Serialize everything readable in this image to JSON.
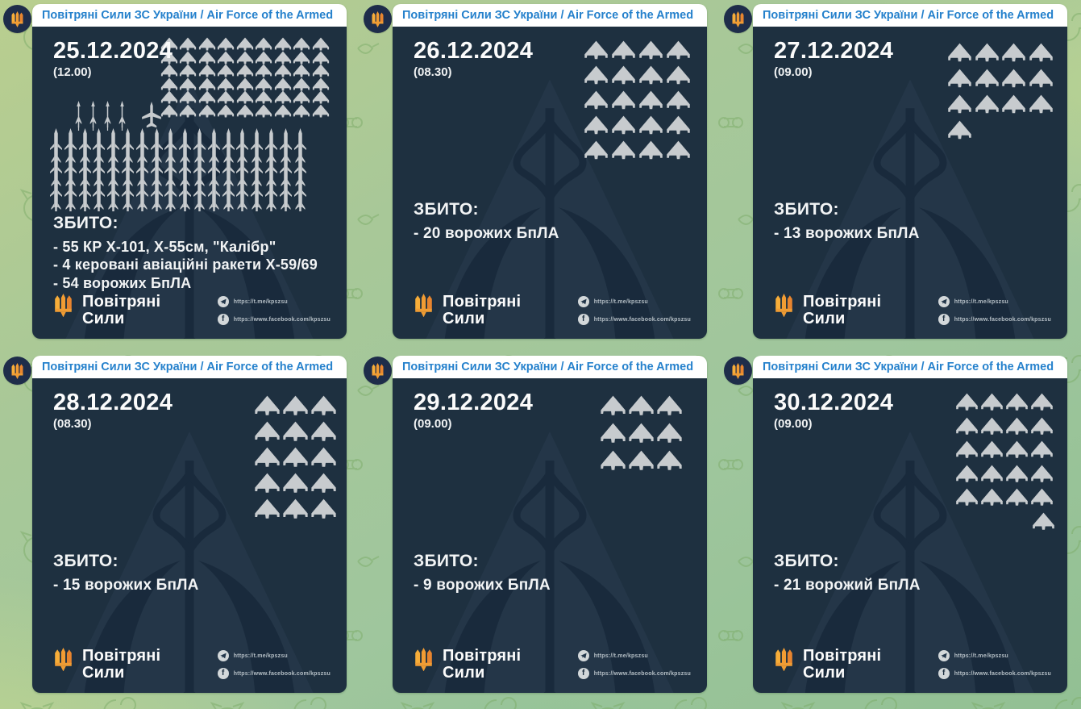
{
  "channel": {
    "title": "Повітряні Сили ЗС України / Air Force of the Armed Forces of U..."
  },
  "labels": {
    "shot_down": "ЗБИТО:"
  },
  "footer": {
    "logo_line1": "Повітряні",
    "logo_line2": "Сили",
    "telegram_url": "https://t.me/kpszsu",
    "facebook_url": "https://www.facebook.com/kpszsu"
  },
  "icon_types": {
    "drone": "shahed-drone-icon",
    "cruise": "cruise-missile-icon",
    "rocket": "guided-rocket-icon",
    "avatar": "trident-icon"
  },
  "colors": {
    "card_bg": "#1e3040",
    "header_blue": "#2581cc",
    "icon_gray": "#c7cbce",
    "trident_orange": "#f09a33",
    "chat_bg_green": "#a6c79a"
  },
  "posts": [
    {
      "date": "25.12.2024",
      "time": "(12.00)",
      "items": [
        "- 55 КР Х-101, Х-55см, \"Калібр\"",
        "- 4 керовані авіаційні ракети Х-59/69",
        "- 54 ворожих БпЛА"
      ],
      "icons": {
        "drones": 54,
        "drone_cols": 9,
        "rockets": 4,
        "cruise": 55,
        "cruise_cols": 18,
        "last_row_align": "left"
      }
    },
    {
      "date": "26.12.2024",
      "time": "(08.30)",
      "items": [
        "- 20 ворожих БпЛА"
      ],
      "icons": {
        "drones": 20,
        "drone_cols": 4,
        "last_row_align": "left"
      }
    },
    {
      "date": "27.12.2024",
      "time": "(09.00)",
      "items": [
        "- 13 ворожих БпЛА"
      ],
      "icons": {
        "drones": 13,
        "drone_cols": 4,
        "last_row_align": "left"
      }
    },
    {
      "date": "28.12.2024",
      "time": "(08.30)",
      "items": [
        "- 15 ворожих БпЛА"
      ],
      "icons": {
        "drones": 15,
        "drone_cols": 3,
        "last_row_align": "left"
      }
    },
    {
      "date": "29.12.2024",
      "time": "(09.00)",
      "items": [
        "- 9 ворожих БпЛА"
      ],
      "icons": {
        "drones": 9,
        "drone_cols": 3,
        "last_row_align": "left"
      }
    },
    {
      "date": "30.12.2024",
      "time": "(09.00)",
      "items": [
        "- 21 ворожий БпЛА"
      ],
      "icons": {
        "drones": 21,
        "drone_cols": 4,
        "last_row_align": "right"
      }
    }
  ]
}
